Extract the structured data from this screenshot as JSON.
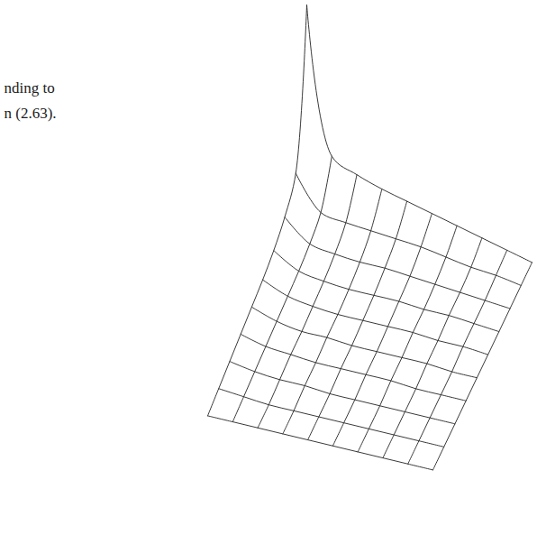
{
  "chart_data": {
    "type": "surface",
    "annotations": [
      "nding to",
      "n (2.63)."
    ],
    "tick_labels": false,
    "z": [
      [
        1.0,
        0.3,
        0.24,
        0.2,
        0.17,
        0.14,
        0.11,
        0.08,
        0.05,
        0.02
      ],
      [
        0.3,
        0.14,
        0.12,
        0.11,
        0.1,
        0.09,
        0.07,
        0.05,
        0.04,
        0.02
      ],
      [
        0.2,
        0.1,
        0.08,
        0.07,
        0.07,
        0.06,
        0.05,
        0.04,
        0.03,
        0.02
      ],
      [
        0.15,
        0.08,
        0.06,
        0.05,
        0.05,
        0.05,
        0.04,
        0.04,
        0.03,
        0.02
      ],
      [
        0.12,
        0.07,
        0.05,
        0.04,
        0.04,
        0.04,
        0.04,
        0.03,
        0.03,
        0.02
      ],
      [
        0.1,
        0.06,
        0.04,
        0.04,
        0.03,
        0.03,
        0.03,
        0.03,
        0.02,
        0.02
      ],
      [
        0.08,
        0.05,
        0.04,
        0.03,
        0.03,
        0.03,
        0.03,
        0.02,
        0.02,
        0.02
      ],
      [
        0.06,
        0.04,
        0.03,
        0.03,
        0.02,
        0.02,
        0.02,
        0.02,
        0.02,
        0.02
      ],
      [
        0.04,
        0.03,
        0.02,
        0.02,
        0.02,
        0.02,
        0.02,
        0.02,
        0.02,
        0.02
      ],
      [
        0.02,
        0.02,
        0.02,
        0.02,
        0.02,
        0.02,
        0.02,
        0.02,
        0.02,
        0.02
      ]
    ]
  }
}
